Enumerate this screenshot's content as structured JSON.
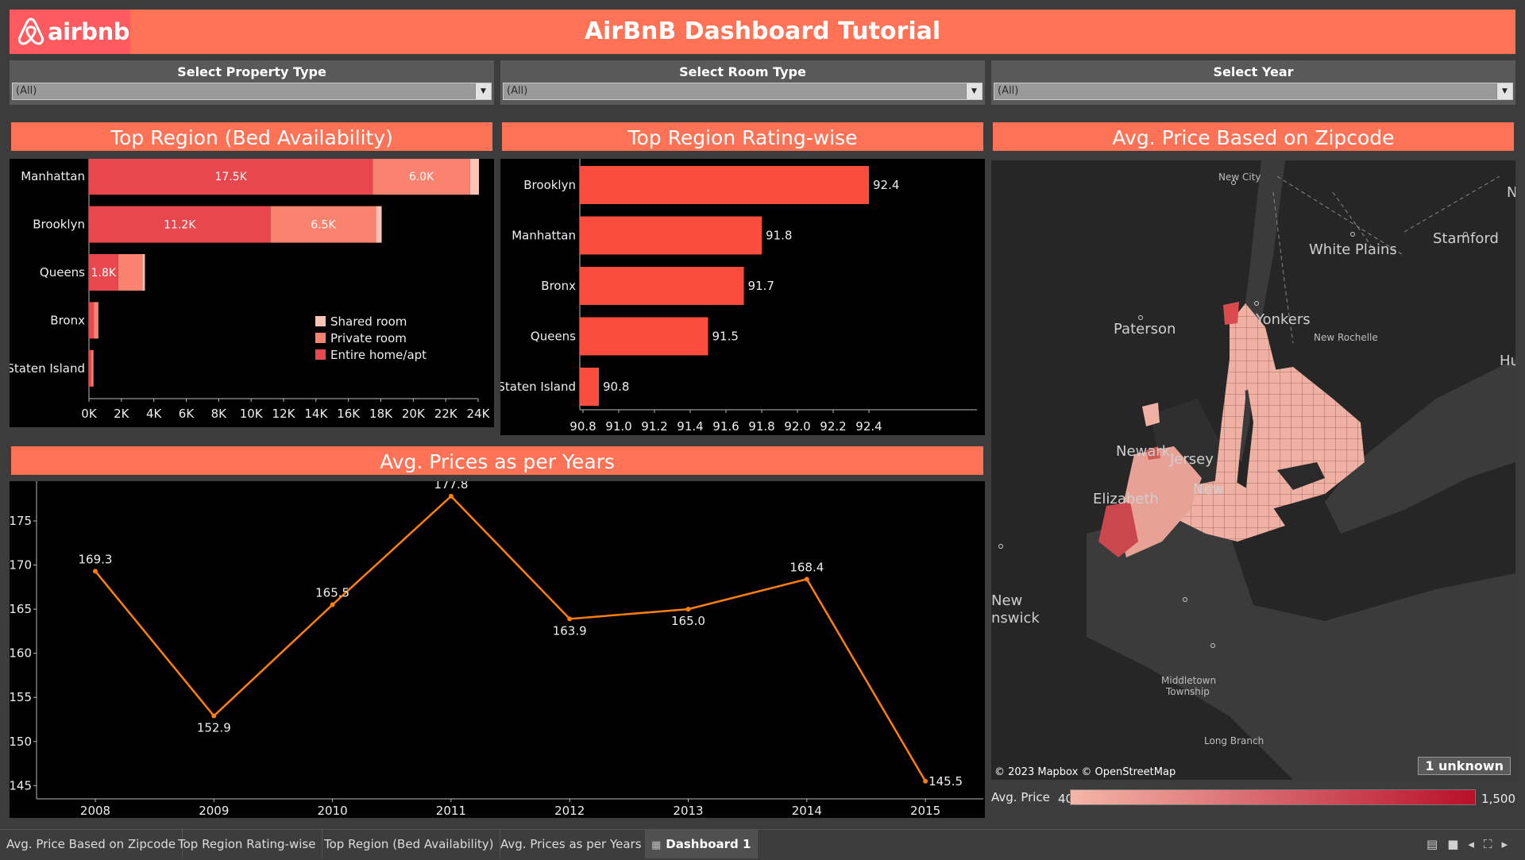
{
  "header": {
    "logo_text": "airbnb",
    "title": "AirBnB Dashboard Tutorial"
  },
  "filters": [
    {
      "label": "Select Property Type",
      "value": "(All)"
    },
    {
      "label": "Select Room Type",
      "value": "(All)"
    },
    {
      "label": "Select Year",
      "value": "(All)"
    }
  ],
  "panels": {
    "beds": {
      "title": "Top Region (Bed Availability)"
    },
    "rating": {
      "title": "Top Region Rating-wise"
    },
    "zipcode": {
      "title": "Avg. Price Based on Zipcode"
    },
    "years": {
      "title": "Avg. Prices as per Years"
    }
  },
  "map": {
    "labels": {
      "new_city": "New City",
      "white_plains": "White Plains",
      "stamford": "Stamford",
      "paterson": "Paterson",
      "yonkers": "Yonkers",
      "new_rochelle": "New Rochelle",
      "newark": "Newark",
      "jersey": "Jersey",
      "new": "New",
      "elizabeth": "Elizabeth",
      "new_brunswick_1": "New",
      "new_brunswick_2": "nswick",
      "middletown": "Middletown",
      "middletown_2": "Township",
      "long_branch": "Long Branch",
      "hunt": "Hunt",
      "n": "N"
    },
    "attribution": "© 2023 Mapbox © OpenStreetMap",
    "unknown_badge": "1 unknown",
    "legend": {
      "title": "Avg. Price",
      "min": "40",
      "max": "1,500",
      "color_low": "#f4b6a8",
      "color_high": "#b8102a"
    }
  },
  "chart_data": [
    {
      "type": "bar",
      "stacked": true,
      "orientation": "horizontal",
      "title": "Top Region (Bed Availability)",
      "categories": [
        "Manhattan",
        "Brooklyn",
        "Queens",
        "Bronx",
        "Staten Island"
      ],
      "series": [
        {
          "name": "Entire home/apt",
          "color": "#e8484d",
          "values": [
            17500,
            11200,
            1800,
            300,
            150
          ]
        },
        {
          "name": "Private room",
          "color": "#f9836f",
          "values": [
            6000,
            6500,
            1500,
            250,
            100
          ]
        },
        {
          "name": "Shared room",
          "color": "#fbc3b3",
          "values": [
            550,
            350,
            150,
            30,
            20
          ]
        }
      ],
      "data_labels": [
        [
          "17.5K",
          "6.0K",
          ""
        ],
        [
          "11.2K",
          "6.5K",
          ""
        ],
        [
          "1.8K",
          "",
          ""
        ],
        [
          "",
          "",
          ""
        ],
        [
          "",
          "",
          ""
        ]
      ],
      "x_ticks": [
        "0K",
        "2K",
        "4K",
        "6K",
        "8K",
        "10K",
        "12K",
        "14K",
        "16K",
        "18K",
        "20K",
        "22K",
        "24K"
      ],
      "xlim": [
        0,
        24000
      ],
      "legend_position": "bottom-right"
    },
    {
      "type": "bar",
      "orientation": "horizontal",
      "title": "Top Region Rating-wise",
      "categories": [
        "Brooklyn",
        "Manhattan",
        "Bronx",
        "Queens",
        "Staten Island"
      ],
      "values": [
        92.4,
        91.8,
        91.7,
        91.5,
        90.8
      ],
      "labels": [
        "92.4",
        "91.8",
        "91.7",
        "91.5",
        "90.8"
      ],
      "x_ticks": [
        "90.8",
        "91.0",
        "91.2",
        "91.4",
        "91.6",
        "91.8",
        "92.0",
        "92.2",
        "92.4"
      ],
      "xlim": [
        90.8,
        92.5
      ],
      "color": "#fb4d3d"
    },
    {
      "type": "line",
      "title": "Avg. Prices as per Years",
      "x": [
        "2008",
        "2009",
        "2010",
        "2011",
        "2012",
        "2013",
        "2014",
        "2015"
      ],
      "y": [
        169.3,
        152.9,
        165.5,
        177.8,
        163.9,
        165.0,
        168.4,
        145.5
      ],
      "labels": [
        "169.3",
        "152.9",
        "165.5",
        "177.8",
        "163.9",
        "165.0",
        "168.4",
        "145.5"
      ],
      "y_ticks": [
        "145",
        "150",
        "155",
        "160",
        "165",
        "170",
        "175"
      ],
      "ylim": [
        143.5,
        179.5
      ],
      "color": "#ff7f0e"
    }
  ],
  "tabs": [
    {
      "label": "Avg. Price Based on Zipcode"
    },
    {
      "label": "Top Region Rating-wise"
    },
    {
      "label": "Top Region (Bed Availability)"
    },
    {
      "label": "Avg. Prices as per Years"
    },
    {
      "label": "Dashboard 1",
      "active": true
    }
  ],
  "tab_icons": {
    "grid": "grid-icon",
    "fullscreen": "fullscreen-icon"
  }
}
